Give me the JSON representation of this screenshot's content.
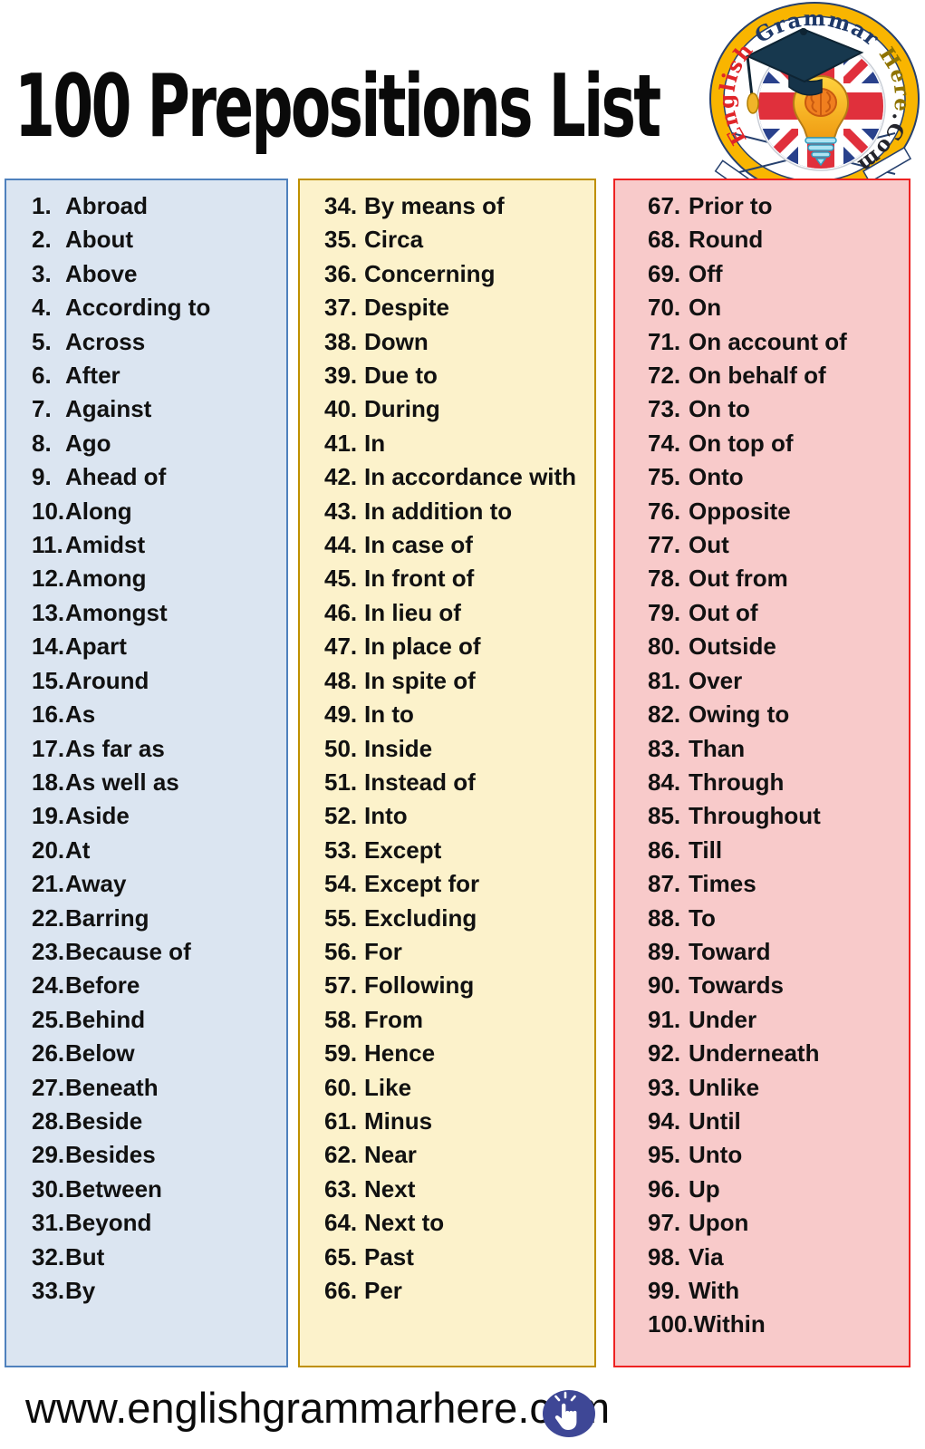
{
  "title": "100 Prepositions List",
  "logo": {
    "part_english": "English ",
    "part_grammar": "Grammar ",
    "part_here": "Here",
    "part_com": ".Com"
  },
  "columns": [
    {
      "name": "blue-column",
      "items": [
        {
          "n": "1.",
          "w": "Abroad"
        },
        {
          "n": "2.",
          "w": "About"
        },
        {
          "n": "3.",
          "w": "Above"
        },
        {
          "n": "4.",
          "w": "According to"
        },
        {
          "n": "5.",
          "w": "Across"
        },
        {
          "n": "6.",
          "w": "After"
        },
        {
          "n": "7.",
          "w": "Against"
        },
        {
          "n": "8.",
          "w": "Ago"
        },
        {
          "n": "9.",
          "w": "Ahead of"
        },
        {
          "n": "10.",
          "w": "Along"
        },
        {
          "n": "11.",
          "w": "Amidst"
        },
        {
          "n": "12.",
          "w": "Among"
        },
        {
          "n": "13.",
          "w": "Amongst"
        },
        {
          "n": "14.",
          "w": "Apart"
        },
        {
          "n": "15.",
          "w": "Around"
        },
        {
          "n": "16.",
          "w": "As"
        },
        {
          "n": "17.",
          "w": "As far as"
        },
        {
          "n": "18.",
          "w": "As well as"
        },
        {
          "n": "19.",
          "w": "Aside"
        },
        {
          "n": "20.",
          "w": "At"
        },
        {
          "n": "21.",
          "w": "Away"
        },
        {
          "n": "22.",
          "w": "Barring"
        },
        {
          "n": "23.",
          "w": "Because of"
        },
        {
          "n": "24.",
          "w": "Before"
        },
        {
          "n": "25.",
          "w": "Behind"
        },
        {
          "n": "26.",
          "w": "Below"
        },
        {
          "n": "27.",
          "w": "Beneath"
        },
        {
          "n": "28.",
          "w": "Beside"
        },
        {
          "n": "29.",
          "w": "Besides"
        },
        {
          "n": "30.",
          "w": "Between"
        },
        {
          "n": "31.",
          "w": "Beyond"
        },
        {
          "n": "32.",
          "w": "But"
        },
        {
          "n": "33.",
          "w": "By"
        }
      ]
    },
    {
      "name": "yellow-column",
      "items": [
        {
          "n": "34.",
          "w": "By means of"
        },
        {
          "n": "35.",
          "w": "Circa"
        },
        {
          "n": "36.",
          "w": "Concerning"
        },
        {
          "n": "37.",
          "w": "Despite"
        },
        {
          "n": "38.",
          "w": "Down"
        },
        {
          "n": "39.",
          "w": "Due to"
        },
        {
          "n": "40.",
          "w": "During"
        },
        {
          "n": "41.",
          "w": "In"
        },
        {
          "n": "42.",
          "w": "In accordance with"
        },
        {
          "n": "43.",
          "w": "In addition to"
        },
        {
          "n": "44.",
          "w": "In case of"
        },
        {
          "n": "45.",
          "w": "In front of"
        },
        {
          "n": "46.",
          "w": "In lieu of"
        },
        {
          "n": "47.",
          "w": "In place of"
        },
        {
          "n": "48.",
          "w": "In spite of"
        },
        {
          "n": "49.",
          "w": "In to"
        },
        {
          "n": "50.",
          "w": "Inside"
        },
        {
          "n": "51.",
          "w": "Instead of"
        },
        {
          "n": "52.",
          "w": "Into"
        },
        {
          "n": "53.",
          "w": "Except"
        },
        {
          "n": "54.",
          "w": "Except for"
        },
        {
          "n": "55.",
          "w": "Excluding"
        },
        {
          "n": "56.",
          "w": "For"
        },
        {
          "n": "57.",
          "w": "Following"
        },
        {
          "n": "58.",
          "w": "From"
        },
        {
          "n": "59.",
          "w": "Hence"
        },
        {
          "n": "60.",
          "w": "Like"
        },
        {
          "n": "61.",
          "w": "Minus"
        },
        {
          "n": "62.",
          "w": "Near"
        },
        {
          "n": "63.",
          "w": "Next"
        },
        {
          "n": "64.",
          "w": "Next to"
        },
        {
          "n": "65.",
          "w": "Past"
        },
        {
          "n": "66.",
          "w": "Per"
        }
      ]
    },
    {
      "name": "pink-column",
      "items": [
        {
          "n": "67.",
          "w": "Prior to"
        },
        {
          "n": "68.",
          "w": "Round"
        },
        {
          "n": "69.",
          "w": "Off"
        },
        {
          "n": "70.",
          "w": "On"
        },
        {
          "n": "71.",
          "w": "On account of"
        },
        {
          "n": "72.",
          "w": "On behalf of"
        },
        {
          "n": "73.",
          "w": "On to"
        },
        {
          "n": "74.",
          "w": "On top of"
        },
        {
          "n": "75.",
          "w": "Onto"
        },
        {
          "n": "76.",
          "w": "Opposite"
        },
        {
          "n": "77.",
          "w": "Out"
        },
        {
          "n": "78.",
          "w": "Out from"
        },
        {
          "n": "79.",
          "w": "Out of"
        },
        {
          "n": "80.",
          "w": "Outside"
        },
        {
          "n": "81.",
          "w": "Over"
        },
        {
          "n": "82.",
          "w": "Owing to"
        },
        {
          "n": "83.",
          "w": "Than"
        },
        {
          "n": "84.",
          "w": "Through"
        },
        {
          "n": "85.",
          "w": "Throughout"
        },
        {
          "n": "86.",
          "w": "Till"
        },
        {
          "n": "87.",
          "w": "Times"
        },
        {
          "n": "88.",
          "w": "To"
        },
        {
          "n": "89.",
          "w": "Toward"
        },
        {
          "n": "90.",
          "w": "Towards"
        },
        {
          "n": "91.",
          "w": "Under"
        },
        {
          "n": "92.",
          "w": "Underneath"
        },
        {
          "n": "93.",
          "w": "Unlike"
        },
        {
          "n": "94.",
          "w": "Until"
        },
        {
          "n": "95.",
          "w": "Unto"
        },
        {
          "n": "96.",
          "w": "Up"
        },
        {
          "n": "97.",
          "w": "Upon"
        },
        {
          "n": "98.",
          "w": "Via"
        },
        {
          "n": "99.",
          "w": "With"
        },
        {
          "n": "100.",
          "w": "Within"
        }
      ]
    }
  ],
  "footer": {
    "url": "www.englishgrammarhere.com"
  },
  "colors": {
    "column_blue_fill": "#dbe5f1",
    "column_blue_border": "#4f81bd",
    "column_yellow_fill": "#fcf2cb",
    "column_yellow_border": "#bf9000",
    "column_pink_fill": "#f8caca",
    "column_pink_border": "#ee2222",
    "logo_ring": "#f9b500",
    "logo_text_english": "#e02428",
    "logo_text_grammar": "#1e3868",
    "logo_text_here": "#8f7300",
    "logo_text_com": "#23242b",
    "footer_icon": "#3e4796"
  }
}
